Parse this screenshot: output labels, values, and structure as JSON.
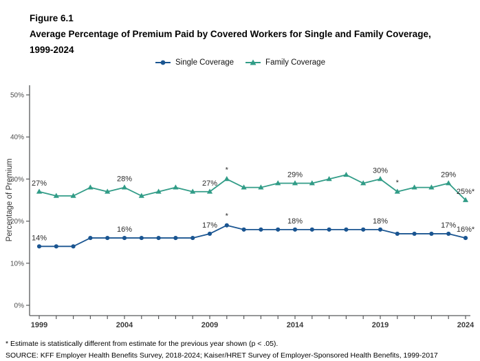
{
  "title": {
    "lines": [
      "Figure 6.1",
      "Average Percentage of Premium Paid by Covered Workers for Single and Family Coverage,",
      "1999-2024"
    ]
  },
  "legend": [
    {
      "label": "Single Coverage",
      "color": "#1a5591",
      "marker": "circle"
    },
    {
      "label": "Family Coverage",
      "color": "#319c87",
      "marker": "triangle"
    }
  ],
  "chart_data": {
    "type": "line",
    "x": [
      1999,
      2000,
      2001,
      2002,
      2003,
      2004,
      2005,
      2006,
      2007,
      2008,
      2009,
      2010,
      2011,
      2012,
      2013,
      2014,
      2015,
      2016,
      2017,
      2018,
      2019,
      2020,
      2021,
      2022,
      2023,
      2024
    ],
    "series": [
      {
        "name": "Single Coverage",
        "key": "single",
        "color": "#1a5591",
        "marker": "circle",
        "values": [
          14,
          14,
          14,
          16,
          16,
          16,
          16,
          16,
          16,
          16,
          17,
          19,
          18,
          18,
          18,
          18,
          18,
          18,
          18,
          18,
          18,
          17,
          17,
          17,
          17,
          16
        ]
      },
      {
        "name": "Family Coverage",
        "key": "family",
        "color": "#319c87",
        "marker": "triangle",
        "values": [
          27,
          26,
          26,
          28,
          27,
          28,
          26,
          27,
          28,
          27,
          27,
          30,
          28,
          28,
          29,
          29,
          29,
          30,
          31,
          29,
          30,
          27,
          28,
          28,
          29,
          25
        ]
      }
    ],
    "ylabel": "Percentage of Premium",
    "ylim": [
      0,
      50
    ],
    "yticks": [
      "0%",
      "10%",
      "20%",
      "30%",
      "40%",
      "50%"
    ],
    "xticks": [
      1999,
      2004,
      2009,
      2014,
      2019,
      2024
    ],
    "grid": "off",
    "legend_position": "top-center",
    "annotations": [
      {
        "series": "single",
        "year": 1999,
        "text": "14%"
      },
      {
        "series": "single",
        "year": 2004,
        "text": "16%"
      },
      {
        "series": "single",
        "year": 2009,
        "text": "17%"
      },
      {
        "series": "single",
        "year": 2010,
        "text": "*"
      },
      {
        "series": "single",
        "year": 2014,
        "text": "18%"
      },
      {
        "series": "single",
        "year": 2019,
        "text": "18%"
      },
      {
        "series": "single",
        "year": 2023,
        "text": "17%"
      },
      {
        "series": "single",
        "year": 2024,
        "text": "16%*"
      },
      {
        "series": "family",
        "year": 1999,
        "text": "27%"
      },
      {
        "series": "family",
        "year": 2004,
        "text": "28%"
      },
      {
        "series": "family",
        "year": 2009,
        "text": "27%"
      },
      {
        "series": "family",
        "year": 2010,
        "text": "*"
      },
      {
        "series": "family",
        "year": 2014,
        "text": "29%"
      },
      {
        "series": "family",
        "year": 2019,
        "text": "30%"
      },
      {
        "series": "family",
        "year": 2020,
        "text": "*"
      },
      {
        "series": "family",
        "year": 2023,
        "text": "29%"
      },
      {
        "series": "family",
        "year": 2024,
        "text": "25%*"
      }
    ]
  },
  "footnotes": [
    "* Estimate is statistically different from estimate for the previous year shown (p < .05).",
    "SOURCE: KFF Employer Health Benefits Survey, 2018-2024; Kaiser/HRET Survey of Employer-Sponsored Health Benefits, 1999-2017"
  ],
  "colors": {
    "single_line": "#1a5591",
    "family_line": "#319c87",
    "axis": "#58595b",
    "tick_label": "#4d4d4d",
    "data_label": "#2b2b2b"
  }
}
